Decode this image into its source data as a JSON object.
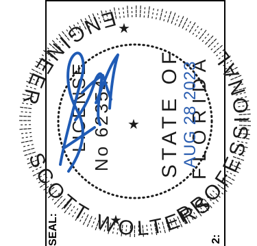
{
  "seal": {
    "ring_text_top": "SCOTT WOLTERS",
    "ring_text_right": "ENGINEER",
    "ring_text_bottom": "PROFESSIONAL",
    "license_label": "LICENSE",
    "license_number": "No 62354",
    "state_line1": "STATE OF",
    "state_line2": "FLORIDA",
    "date_stamp": "AUG 28 2023",
    "edge_label_left": "SEAL:",
    "edge_label_bottom": "2:",
    "signature": "Scott Wolters"
  },
  "colors": {
    "ink": "#1b1b1b",
    "signature_blue": "#1f5bb5",
    "date_blue": "#2a5db0",
    "paper": "#ffffff"
  }
}
